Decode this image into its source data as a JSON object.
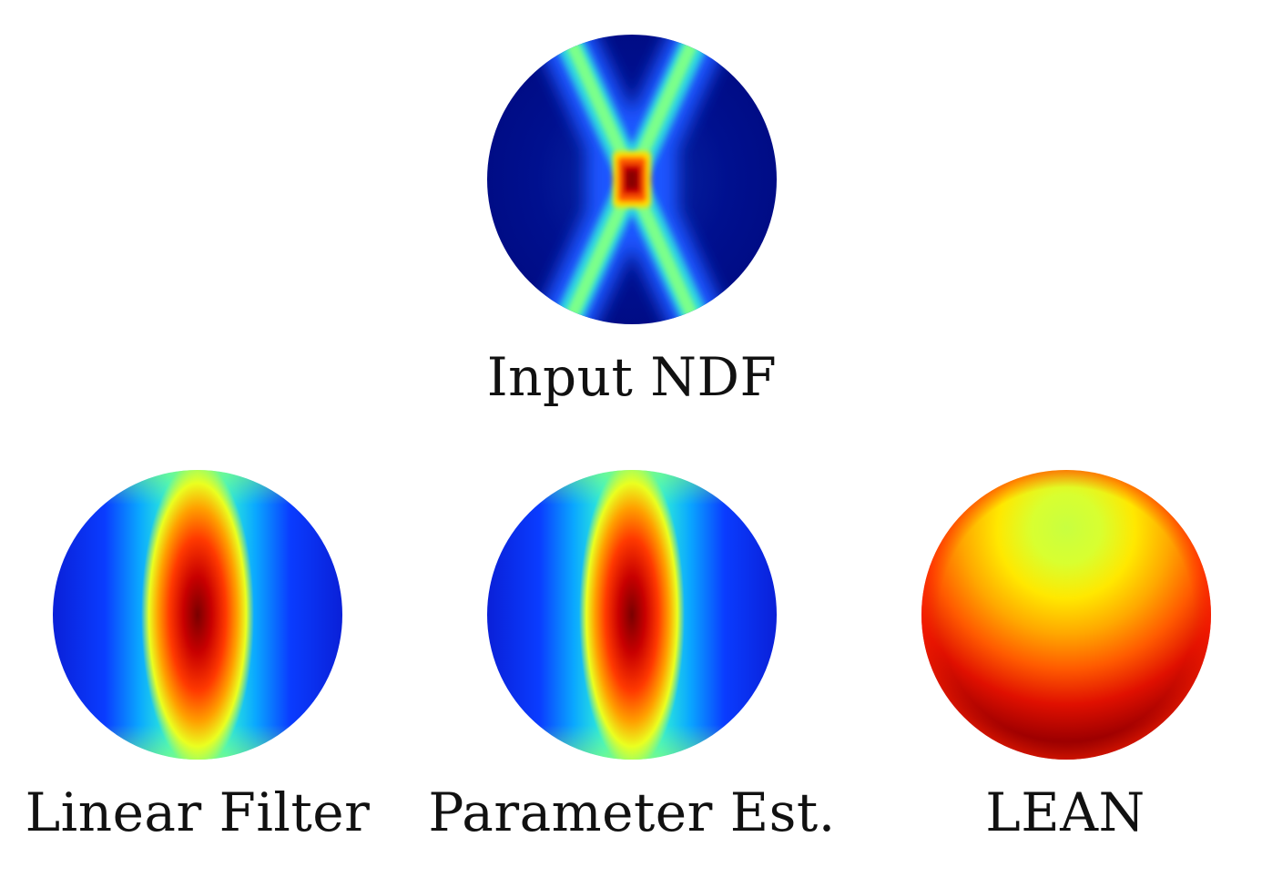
{
  "panels": [
    {
      "id": "input-ndf",
      "caption": "Input NDF"
    },
    {
      "id": "linear-filter",
      "caption": "Linear Filter"
    },
    {
      "id": "parameter-est",
      "caption": "Parameter Est."
    },
    {
      "id": "lean",
      "caption": "LEAN"
    }
  ],
  "colormap": "jet"
}
